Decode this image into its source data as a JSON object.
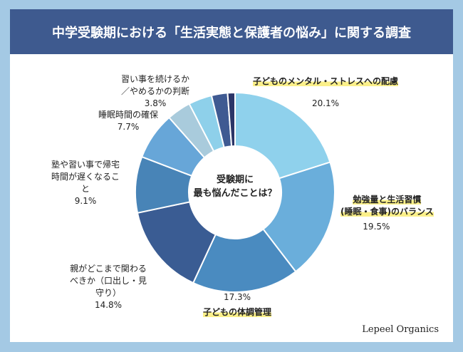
{
  "title": "中学受験期における「生活実態と保護者の悩み」に関する調査",
  "brand": "Lepeel Organics",
  "chart_data": {
    "type": "pie",
    "donut": true,
    "center_label": [
      "受験期に",
      "最も悩んだことは？"
    ],
    "slices": [
      {
        "label": "子どものメンタル・ストレスへの配慮",
        "value": 20.1,
        "value_label": "20.1%",
        "color": "#8fd1ec",
        "highlight": true
      },
      {
        "label": "勉強量と生活習慣(睡眠・食事)のバランス",
        "label_lines": [
          "勉強量と生活習慣",
          "(睡眠・食事)のバランス"
        ],
        "value": 19.5,
        "value_label": "19.5%",
        "color": "#6aaedb",
        "highlight": true
      },
      {
        "label": "子どもの体調管理",
        "value": 17.3,
        "value_label": "17.3%",
        "color": "#4a8bc0",
        "highlight": true
      },
      {
        "label": "親がどこまで関わるべきか（口出し・見守り）",
        "label_lines": [
          "親がどこまで関わる",
          "べきか（口出し・見",
          "守り）"
        ],
        "value": 14.8,
        "value_label": "14.8%",
        "color": "#3a5c93"
      },
      {
        "label": "塾や習い事で帰宅時間が遅くなること",
        "label_lines": [
          "塾や習い事で帰宅",
          "時間が遅くなるこ",
          "と"
        ],
        "value": 9.1,
        "value_label": "9.1%",
        "color": "#4884b7"
      },
      {
        "label": "睡眠時間の確保",
        "value": 7.7,
        "value_label": "7.7%",
        "color": "#67a6d8"
      },
      {
        "label": "",
        "value": 3.9,
        "color": "#a9cbdc"
      },
      {
        "label": "習い事を続けるか／やめるかの判断",
        "label_lines": [
          "習い事を続けるか",
          "／やめるかの判断"
        ],
        "value": 3.8,
        "value_label": "3.8%",
        "color": "#8ed0ea"
      },
      {
        "label": "",
        "value": 2.6,
        "color": "#3f5a92"
      },
      {
        "label": "",
        "value": 1.2,
        "color": "#2b3567"
      }
    ]
  }
}
